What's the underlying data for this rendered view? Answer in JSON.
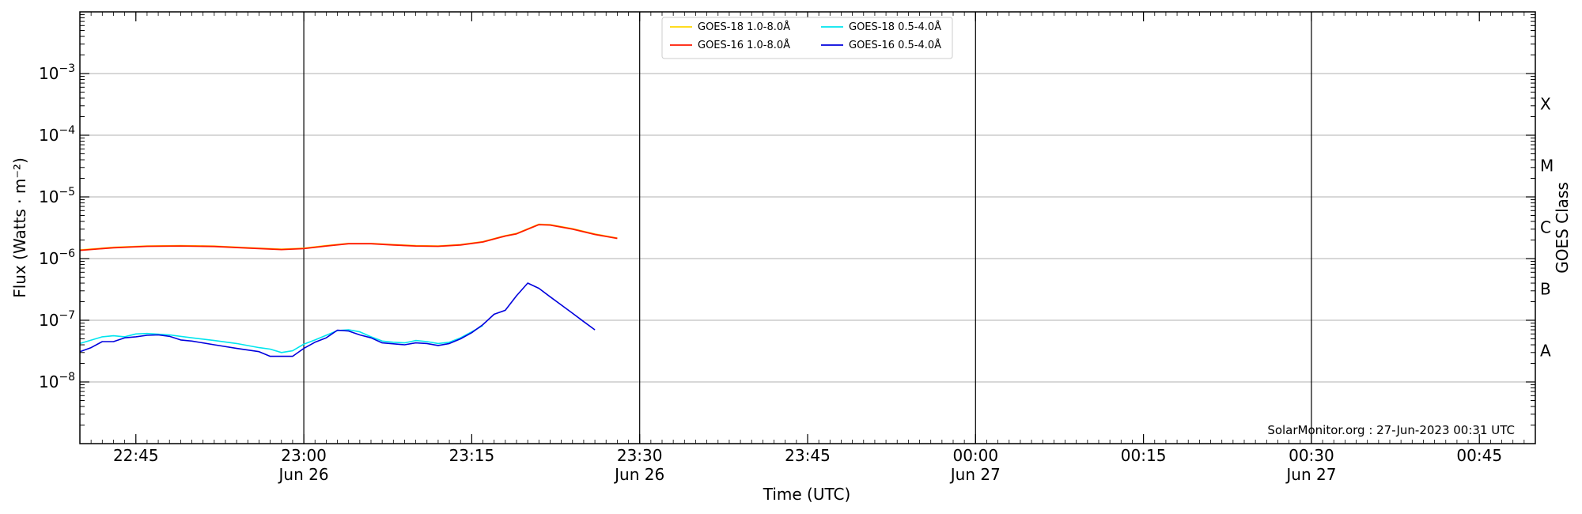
{
  "chart_data": {
    "type": "line",
    "xlabel": "Time (UTC)",
    "ylabel": "Flux (Watts · m⁻²)",
    "ylabel_right": "GOES Class",
    "yscale": "log",
    "xlim": [
      "2023-06-26T22:40",
      "2023-06-27T00:50"
    ],
    "ylim": [
      1e-09,
      0.01
    ],
    "grid": "horizontal",
    "legend_position": "top-center",
    "credit": "SolarMonitor.org : 27-Jun-2023 00:31 UTC",
    "x_ticks": [
      {
        "time": "2023-06-26T22:45",
        "label": "22:45",
        "sub": ""
      },
      {
        "time": "2023-06-26T23:00",
        "label": "23:00",
        "sub": "Jun 26"
      },
      {
        "time": "2023-06-26T23:15",
        "label": "23:15",
        "sub": ""
      },
      {
        "time": "2023-06-26T23:30",
        "label": "23:30",
        "sub": "Jun 26"
      },
      {
        "time": "2023-06-26T23:45",
        "label": "23:45",
        "sub": ""
      },
      {
        "time": "2023-06-27T00:00",
        "label": "00:00",
        "sub": "Jun 27"
      },
      {
        "time": "2023-06-27T00:15",
        "label": "00:15",
        "sub": ""
      },
      {
        "time": "2023-06-27T00:30",
        "label": "00:30",
        "sub": "Jun 27"
      },
      {
        "time": "2023-06-27T00:45",
        "label": "00:45",
        "sub": ""
      }
    ],
    "vertical_lines": [
      "2023-06-26T23:00",
      "2023-06-26T23:30",
      "2023-06-27T00:00",
      "2023-06-27T00:30"
    ],
    "y_ticks": [
      {
        "value": 1e-08,
        "mant": "10",
        "exp": "−8"
      },
      {
        "value": 1e-07,
        "mant": "10",
        "exp": "−7"
      },
      {
        "value": 1e-06,
        "mant": "10",
        "exp": "−6"
      },
      {
        "value": 1e-05,
        "mant": "10",
        "exp": "−5"
      },
      {
        "value": 0.0001,
        "mant": "10",
        "exp": "−4"
      },
      {
        "value": 0.001,
        "mant": "10",
        "exp": "−3"
      }
    ],
    "goes_classes": [
      {
        "label": "A",
        "value": 3.2e-08
      },
      {
        "label": "B",
        "value": 3.2e-07
      },
      {
        "label": "C",
        "value": 3.2e-06
      },
      {
        "label": "M",
        "value": 3.2e-05
      },
      {
        "label": "X",
        "value": 0.00032
      }
    ],
    "series": [
      {
        "name": "GOES-18 1.0-8.0Å",
        "color": "#ffd700",
        "points": [
          [
            "2023-06-26T22:40",
            1.38e-06
          ],
          [
            "2023-06-26T22:43",
            1.52e-06
          ],
          [
            "2023-06-26T22:46",
            1.6e-06
          ],
          [
            "2023-06-26T22:49",
            1.62e-06
          ],
          [
            "2023-06-26T22:52",
            1.59e-06
          ],
          [
            "2023-06-26T22:55",
            1.5e-06
          ],
          [
            "2023-06-26T22:58",
            1.42e-06
          ],
          [
            "2023-06-26T23:00",
            1.47e-06
          ],
          [
            "2023-06-26T23:02",
            1.62e-06
          ],
          [
            "2023-06-26T23:04",
            1.76e-06
          ],
          [
            "2023-06-26T23:06",
            1.76e-06
          ],
          [
            "2023-06-26T23:08",
            1.68e-06
          ],
          [
            "2023-06-26T23:10",
            1.62e-06
          ],
          [
            "2023-06-26T23:12",
            1.6e-06
          ],
          [
            "2023-06-26T23:14",
            1.68e-06
          ],
          [
            "2023-06-26T23:16",
            1.88e-06
          ],
          [
            "2023-06-26T23:18",
            2.35e-06
          ],
          [
            "2023-06-26T23:19",
            2.55e-06
          ],
          [
            "2023-06-26T23:21",
            3.6e-06
          ],
          [
            "2023-06-26T23:22",
            3.55e-06
          ],
          [
            "2023-06-26T23:24",
            3.05e-06
          ],
          [
            "2023-06-26T23:26",
            2.5e-06
          ],
          [
            "2023-06-26T23:28",
            2.15e-06
          ]
        ]
      },
      {
        "name": "GOES-16 1.0-8.0Å",
        "color": "#ff1a00",
        "points": [
          [
            "2023-06-26T22:40",
            1.36e-06
          ],
          [
            "2023-06-26T22:43",
            1.5e-06
          ],
          [
            "2023-06-26T22:46",
            1.58e-06
          ],
          [
            "2023-06-26T22:49",
            1.6e-06
          ],
          [
            "2023-06-26T22:52",
            1.57e-06
          ],
          [
            "2023-06-26T22:55",
            1.48e-06
          ],
          [
            "2023-06-26T22:58",
            1.4e-06
          ],
          [
            "2023-06-26T23:00",
            1.45e-06
          ],
          [
            "2023-06-26T23:02",
            1.6e-06
          ],
          [
            "2023-06-26T23:04",
            1.74e-06
          ],
          [
            "2023-06-26T23:06",
            1.74e-06
          ],
          [
            "2023-06-26T23:08",
            1.66e-06
          ],
          [
            "2023-06-26T23:10",
            1.6e-06
          ],
          [
            "2023-06-26T23:12",
            1.58e-06
          ],
          [
            "2023-06-26T23:14",
            1.66e-06
          ],
          [
            "2023-06-26T23:16",
            1.86e-06
          ],
          [
            "2023-06-26T23:18",
            2.32e-06
          ],
          [
            "2023-06-26T23:19",
            2.52e-06
          ],
          [
            "2023-06-26T23:21",
            3.55e-06
          ],
          [
            "2023-06-26T23:22",
            3.5e-06
          ],
          [
            "2023-06-26T23:24",
            3e-06
          ],
          [
            "2023-06-26T23:26",
            2.46e-06
          ],
          [
            "2023-06-26T23:28",
            2.12e-06
          ]
        ]
      },
      {
        "name": "GOES-18 0.5-4.0Å",
        "color": "#00e5ee",
        "points": [
          [
            "2023-06-26T22:40",
            4.2e-08
          ],
          [
            "2023-06-26T22:42",
            5.4e-08
          ],
          [
            "2023-06-26T22:43",
            5.6e-08
          ],
          [
            "2023-06-26T22:44",
            5.4e-08
          ],
          [
            "2023-06-26T22:45",
            6e-08
          ],
          [
            "2023-06-26T22:46",
            6.1e-08
          ],
          [
            "2023-06-26T22:48",
            5.8e-08
          ],
          [
            "2023-06-26T22:50",
            5.2e-08
          ],
          [
            "2023-06-26T22:52",
            4.7e-08
          ],
          [
            "2023-06-26T22:54",
            4.2e-08
          ],
          [
            "2023-06-26T22:56",
            3.6e-08
          ],
          [
            "2023-06-26T22:57",
            3.4e-08
          ],
          [
            "2023-06-26T22:58",
            3e-08
          ],
          [
            "2023-06-26T22:59",
            3.2e-08
          ],
          [
            "2023-06-26T23:00",
            4.1e-08
          ],
          [
            "2023-06-26T23:01",
            4.8e-08
          ],
          [
            "2023-06-26T23:02",
            5.7e-08
          ],
          [
            "2023-06-26T23:03",
            6.8e-08
          ],
          [
            "2023-06-26T23:04",
            7e-08
          ],
          [
            "2023-06-26T23:05",
            6.5e-08
          ],
          [
            "2023-06-26T23:06",
            5.4e-08
          ],
          [
            "2023-06-26T23:07",
            4.6e-08
          ],
          [
            "2023-06-26T23:08",
            4.4e-08
          ],
          [
            "2023-06-26T23:09",
            4.3e-08
          ],
          [
            "2023-06-26T23:10",
            4.7e-08
          ],
          [
            "2023-06-26T23:11",
            4.5e-08
          ],
          [
            "2023-06-26T23:12",
            4.2e-08
          ],
          [
            "2023-06-26T23:13",
            4.4e-08
          ],
          [
            "2023-06-26T23:14",
            5.2e-08
          ],
          [
            "2023-06-26T23:15",
            6.5e-08
          ],
          [
            "2023-06-26T23:16",
            8.2e-08
          ]
        ]
      },
      {
        "name": "GOES-16 0.5-4.0Å",
        "color": "#0000dd",
        "points": [
          [
            "2023-06-26T22:40",
            3.1e-08
          ],
          [
            "2023-06-26T22:41",
            3.6e-08
          ],
          [
            "2023-06-26T22:42",
            4.5e-08
          ],
          [
            "2023-06-26T22:43",
            4.5e-08
          ],
          [
            "2023-06-26T22:44",
            5.2e-08
          ],
          [
            "2023-06-26T22:45",
            5.4e-08
          ],
          [
            "2023-06-26T22:46",
            5.7e-08
          ],
          [
            "2023-06-26T22:47",
            5.8e-08
          ],
          [
            "2023-06-26T22:48",
            5.5e-08
          ],
          [
            "2023-06-26T22:49",
            4.8e-08
          ],
          [
            "2023-06-26T22:50",
            4.6e-08
          ],
          [
            "2023-06-26T22:52",
            4e-08
          ],
          [
            "2023-06-26T22:54",
            3.5e-08
          ],
          [
            "2023-06-26T22:56",
            3.1e-08
          ],
          [
            "2023-06-26T22:57",
            2.6e-08
          ],
          [
            "2023-06-26T22:59",
            2.6e-08
          ],
          [
            "2023-06-26T23:00",
            3.5e-08
          ],
          [
            "2023-06-26T23:01",
            4.4e-08
          ],
          [
            "2023-06-26T23:02",
            5.2e-08
          ],
          [
            "2023-06-26T23:03",
            6.9e-08
          ],
          [
            "2023-06-26T23:04",
            6.7e-08
          ],
          [
            "2023-06-26T23:05",
            5.8e-08
          ],
          [
            "2023-06-26T23:06",
            5.2e-08
          ],
          [
            "2023-06-26T23:07",
            4.3e-08
          ],
          [
            "2023-06-26T23:09",
            4e-08
          ],
          [
            "2023-06-26T23:10",
            4.3e-08
          ],
          [
            "2023-06-26T23:11",
            4.2e-08
          ],
          [
            "2023-06-26T23:12",
            3.9e-08
          ],
          [
            "2023-06-26T23:13",
            4.2e-08
          ],
          [
            "2023-06-26T23:14",
            5e-08
          ],
          [
            "2023-06-26T23:15",
            6.3e-08
          ],
          [
            "2023-06-26T23:16",
            8.5e-08
          ],
          [
            "2023-06-26T23:17",
            1.25e-07
          ],
          [
            "2023-06-26T23:18",
            1.45e-07
          ],
          [
            "2023-06-26T23:19",
            2.5e-07
          ],
          [
            "2023-06-26T23:20",
            4e-07
          ],
          [
            "2023-06-26T23:21",
            3.3e-07
          ],
          [
            "2023-06-26T23:22",
            2.4e-07
          ],
          [
            "2023-06-26T23:24",
            1.3e-07
          ],
          [
            "2023-06-26T23:25",
            9.5e-08
          ],
          [
            "2023-06-26T23:26",
            7e-08
          ]
        ]
      }
    ]
  }
}
